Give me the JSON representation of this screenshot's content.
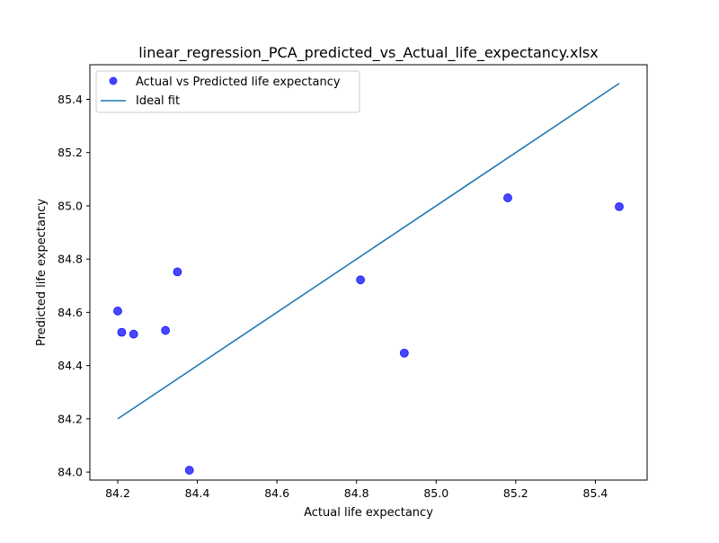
{
  "chart_data": {
    "type": "scatter",
    "title": "linear_regression_PCA_predicted_vs_Actual_life_expectancy.xlsx",
    "xlabel": "Actual life expectancy",
    "ylabel": "Predicted life expectancy",
    "xlim": [
      84.13,
      85.53
    ],
    "ylim": [
      83.97,
      85.53
    ],
    "xticks": [
      84.2,
      84.4,
      84.6,
      84.8,
      85.0,
      85.2,
      85.4
    ],
    "xtick_labels": [
      "84.2",
      "84.4",
      "84.6",
      "84.8",
      "85.0",
      "85.2",
      "85.4"
    ],
    "yticks": [
      84.0,
      84.2,
      84.4,
      84.6,
      84.8,
      85.0,
      85.2,
      85.4
    ],
    "ytick_labels": [
      "84.0",
      "84.2",
      "84.4",
      "84.6",
      "84.8",
      "85.0",
      "85.2",
      "85.4"
    ],
    "grid": false,
    "legend_position": "top-left",
    "series": [
      {
        "name": "Actual vs Predicted life expectancy",
        "kind": "scatter",
        "color": "#0000ff",
        "points": [
          {
            "x": 84.2,
            "y": 84.605
          },
          {
            "x": 84.21,
            "y": 84.525
          },
          {
            "x": 84.24,
            "y": 84.518
          },
          {
            "x": 84.32,
            "y": 84.532
          },
          {
            "x": 84.35,
            "y": 84.752
          },
          {
            "x": 84.38,
            "y": 84.007
          },
          {
            "x": 84.81,
            "y": 84.722
          },
          {
            "x": 84.92,
            "y": 84.447
          },
          {
            "x": 85.18,
            "y": 85.03
          },
          {
            "x": 85.46,
            "y": 84.997
          }
        ]
      },
      {
        "name": "Ideal fit",
        "kind": "line",
        "color": "#1f77b4",
        "points": [
          {
            "x": 84.2,
            "y": 84.2
          },
          {
            "x": 85.46,
            "y": 85.46
          }
        ]
      }
    ]
  }
}
